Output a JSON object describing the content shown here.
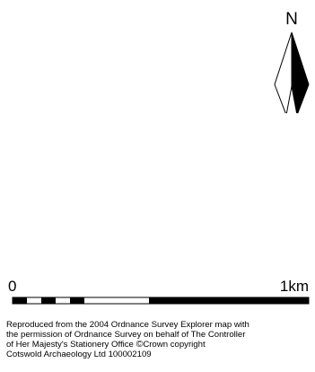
{
  "north_arrow": {
    "label": "N",
    "icon": "north-arrow-icon"
  },
  "scale_bar": {
    "start_label": "0",
    "end_label": "1km"
  },
  "attribution": {
    "line1": "Reproduced from the 2004 Ordnance Survey Explorer map with",
    "line2": "the permission of Ordnance Survey on behalf of The Controller",
    "line3_before": "of Her Majesty's Stationery Office",
    "copyright_symbol": "©",
    "line3_after": "Crown copyright",
    "line4": "Cotswold Archaeology Ltd 100002109"
  },
  "colors": {
    "ink": "#000000",
    "paper": "#ffffff"
  }
}
